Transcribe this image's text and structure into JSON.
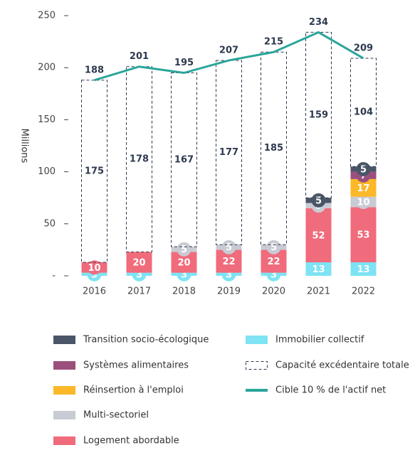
{
  "chart_data": {
    "type": "bar",
    "y_label": "Millions",
    "categories": [
      "2016",
      "2017",
      "2018",
      "2019",
      "2020",
      "2021",
      "2022"
    ],
    "series": [
      {
        "name": "Immobilier collectif",
        "color": "#7ee3f3",
        "values": [
          3,
          3,
          3,
          3,
          3,
          13,
          13
        ]
      },
      {
        "name": "Logement abordable",
        "color": "#f06b7b",
        "values": [
          10,
          20,
          20,
          22,
          22,
          52,
          53
        ]
      },
      {
        "name": "Multi-sectoriel",
        "color": "#c8cbd3",
        "values": [
          null,
          null,
          5,
          5,
          5,
          5,
          10
        ]
      },
      {
        "name": "Réinsertion à l'emploi",
        "color": "#fbb829",
        "values": [
          null,
          null,
          null,
          null,
          null,
          null,
          17
        ]
      },
      {
        "name": "Systèmes alimentaires",
        "color": "#9b4f7c",
        "values": [
          null,
          null,
          null,
          null,
          null,
          null,
          7
        ]
      },
      {
        "name": "Transition socio-écologique",
        "color": "#4a5668",
        "values": [
          null,
          null,
          null,
          null,
          null,
          5,
          5
        ]
      },
      {
        "name": "Capacité excédentaire totale",
        "color": "#2d3a4f",
        "dashed": true,
        "values": [
          175,
          178,
          167,
          177,
          185,
          159,
          104
        ]
      }
    ],
    "line": {
      "name": "Cible 10 % de l'actif net",
      "color": "#2aa59a",
      "values": [
        188,
        201,
        195,
        207,
        215,
        234,
        209
      ]
    },
    "ylim": [
      0,
      250
    ],
    "yticks": [
      {
        "value": 0,
        "label": "-"
      },
      50,
      100,
      150,
      200,
      250
    ]
  }
}
